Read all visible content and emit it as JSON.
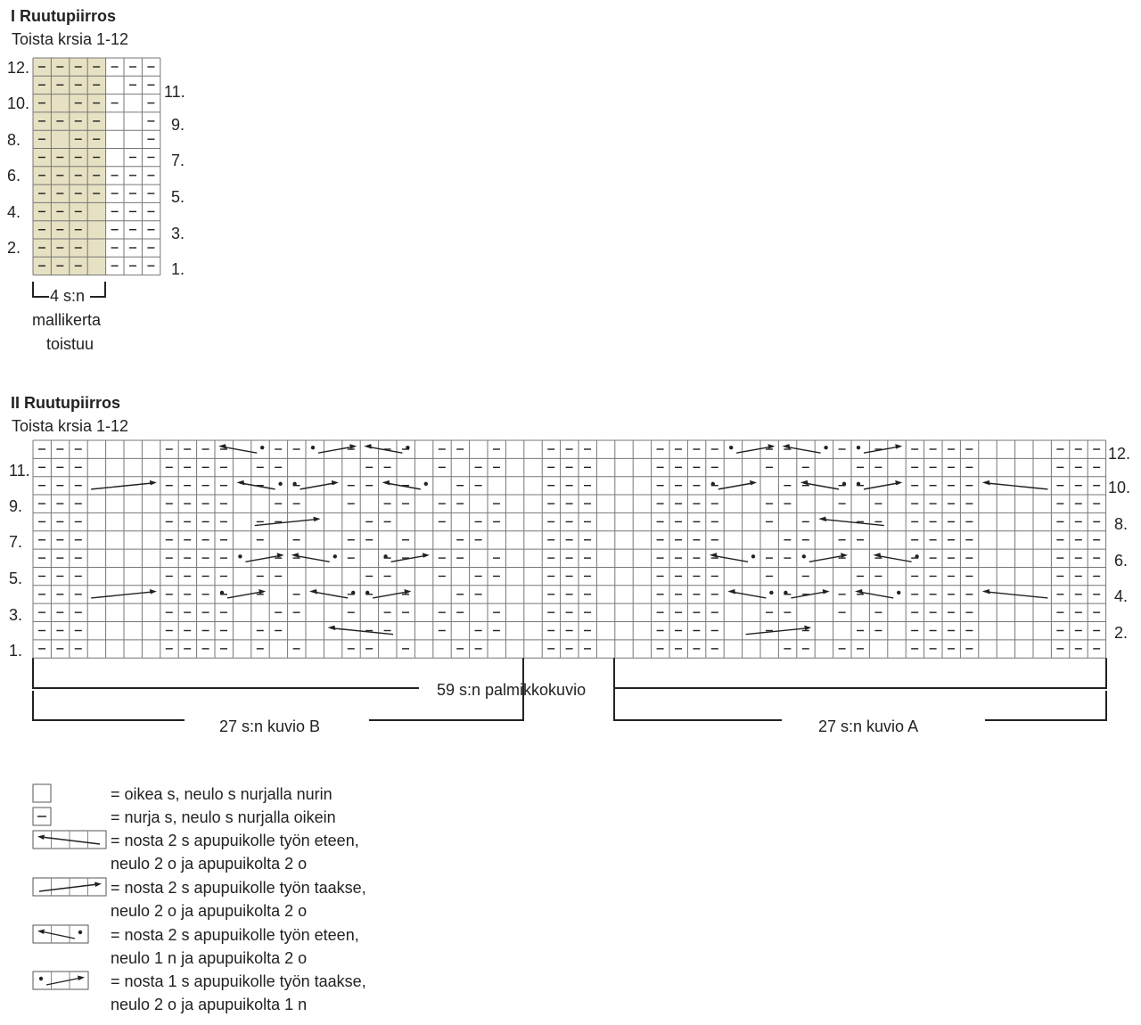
{
  "chart1": {
    "title": "I Ruutupiirros",
    "subtitle": "Toista krsia 1-12",
    "rows_left": [
      "12.",
      "10.",
      "8.",
      "6.",
      "4.",
      "2."
    ],
    "rows_right": [
      "11.",
      "9.",
      "7.",
      "5.",
      "3.",
      "1."
    ],
    "repeat_label": "4 s:n",
    "repeat_line2": "mallikerta",
    "repeat_line3": "toistuu",
    "shade_color": "#e7e1c3"
  },
  "chart2": {
    "title": "II Ruutupiirros",
    "subtitle": "Toista krsia 1-12",
    "rows_left": [
      "11.",
      "9.",
      "7.",
      "5.",
      "3.",
      "1."
    ],
    "rows_right": [
      "12.",
      "10.",
      "8.",
      "6.",
      "4.",
      "2."
    ],
    "label_total": "59 s:n palmikkokuvio",
    "label_b": "27 s:n kuvio B",
    "label_a": "27 s:n kuvio A"
  },
  "legend": [
    {
      "symbol": "empty-square-icon",
      "lines": [
        "= oikea s, neulo s nurjalla nurin"
      ]
    },
    {
      "symbol": "dash-square-icon",
      "lines": [
        "= nurja s, neulo s nurjalla oikein"
      ]
    },
    {
      "symbol": "left-cable-4-icon",
      "lines": [
        "= nosta 2 s apupuikolle työn eteen,",
        "neulo 2 o ja apupuikolta 2 o"
      ]
    },
    {
      "symbol": "right-cable-4-icon",
      "lines": [
        "= nosta 2 s apupuikolle työn taakse,",
        "neulo 2 o ja apupuikolta 2 o"
      ]
    },
    {
      "symbol": "left-cable-dot-icon",
      "lines": [
        "= nosta 2 s apupuikolle työn eteen,",
        "neulo 1 n ja apupuikolta 2 o"
      ]
    },
    {
      "symbol": "right-cable-dot-icon",
      "lines": [
        "= nosta 1 s apupuikolle työn taakse,",
        "neulo 2 o ja apupuikolta 1 n"
      ]
    }
  ]
}
